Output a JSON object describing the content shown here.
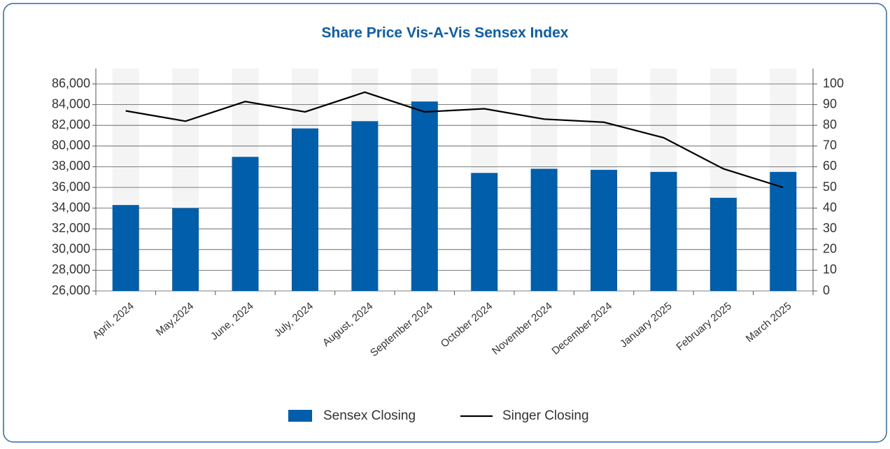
{
  "chart_data": {
    "type": "bar_line",
    "title": "Share Price Vis-A-Vis Sensex Index",
    "categories": [
      "April, 2024",
      "May,2024",
      "June, 2024",
      "July, 2024",
      "August, 2024",
      "September 2024",
      "October 2024",
      "November 2024",
      "December 2024",
      "January 2025",
      "February 2025",
      "March 2025"
    ],
    "series": [
      {
        "name": "Sensex Closing",
        "type": "bar",
        "color": "#005eab",
        "values": [
          34300,
          34000,
          58000,
          81700,
          82400,
          84300,
          37400,
          37800,
          37700,
          37500,
          35000,
          37500
        ]
      },
      {
        "name": "Singer Closing",
        "type": "line",
        "axis": "y2",
        "color": "#000000",
        "values": [
          87,
          82,
          91.5,
          86.5,
          96,
          86.5,
          88,
          83,
          81.5,
          74,
          59,
          50
        ]
      }
    ],
    "ylim": [
      26000,
      86000
    ],
    "yticks": [
      {
        "value": 26000,
        "label": "26,000"
      },
      {
        "value": 28000,
        "label": "28,000"
      },
      {
        "value": 30000,
        "label": "30,000"
      },
      {
        "value": 32000,
        "label": "32,000"
      },
      {
        "value": 34000,
        "label": "34,000"
      },
      {
        "value": 36000,
        "label": "36,000"
      },
      {
        "value": 38000,
        "label": "38,000"
      },
      {
        "value": 80000,
        "label": "80,000"
      },
      {
        "value": 82000,
        "label": "82,000"
      },
      {
        "value": 84000,
        "label": "84,000"
      },
      {
        "value": 86000,
        "label": "86,000"
      }
    ],
    "y2lim": [
      0,
      100
    ],
    "y2ticks": [
      0,
      10,
      20,
      30,
      40,
      50,
      60,
      70,
      80,
      90,
      100
    ],
    "grid": true,
    "legend": "bottom"
  }
}
